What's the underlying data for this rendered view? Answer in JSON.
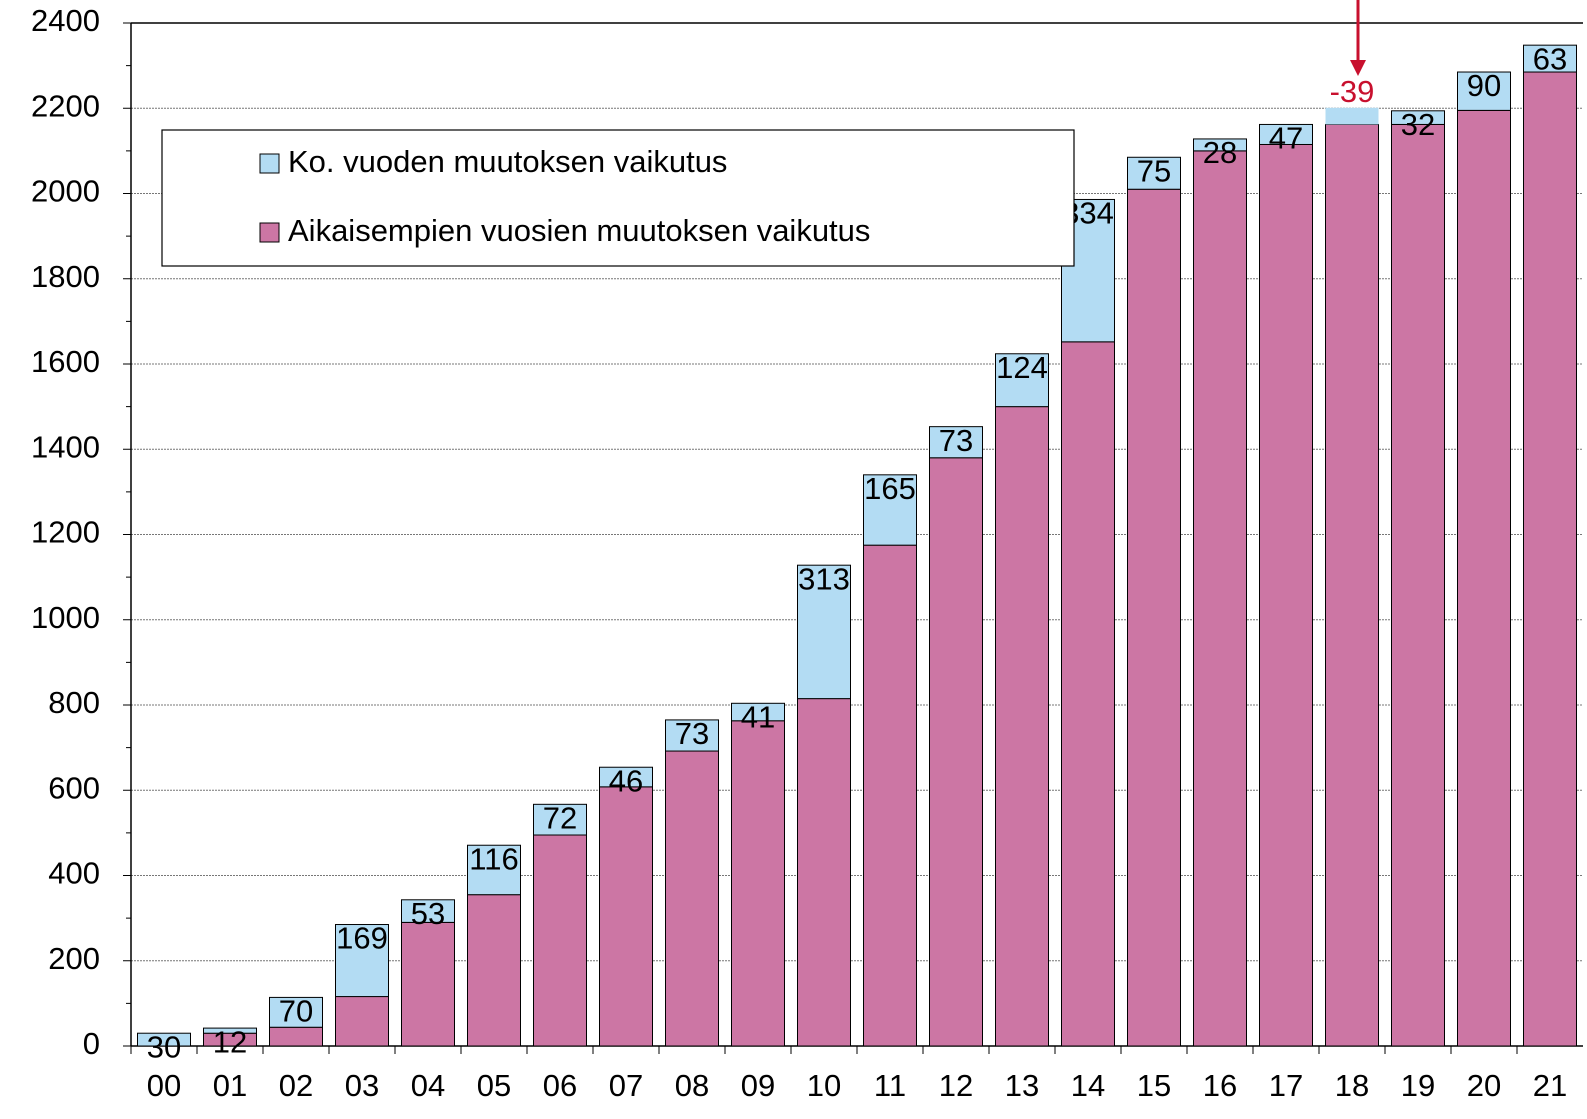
{
  "chart_data": {
    "type": "stacked_bar",
    "categories": [
      "00",
      "01",
      "02",
      "03",
      "04",
      "05",
      "06",
      "07",
      "08",
      "09",
      "10",
      "11",
      "12",
      "13",
      "14",
      "15",
      "16",
      "17",
      "18",
      "19",
      "20",
      "21"
    ],
    "series": [
      {
        "name": "Aikaisempien vuosien muutoksen vaikutus",
        "color": "#cc76a4",
        "values": [
          0,
          30,
          44,
          116,
          290,
          355,
          495,
          608,
          692,
          763,
          815,
          1175,
          1380,
          1500,
          1652,
          2010,
          2100,
          2115,
          2201,
          2162,
          2195,
          2285
        ]
      },
      {
        "name": "Ko. vuoden muutoksen vaikutus",
        "color": "#b3dcf3",
        "values": [
          30,
          12,
          70,
          169,
          53,
          116,
          72,
          46,
          73,
          41,
          313,
          165,
          73,
          124,
          334,
          75,
          28,
          47,
          -39,
          32,
          90,
          63
        ]
      }
    ],
    "ylim": [
      0,
      2400
    ],
    "yticks": [
      0,
      200,
      400,
      600,
      800,
      1000,
      1200,
      1400,
      1600,
      1800,
      2000,
      2200,
      2400
    ],
    "grid": true
  }
}
